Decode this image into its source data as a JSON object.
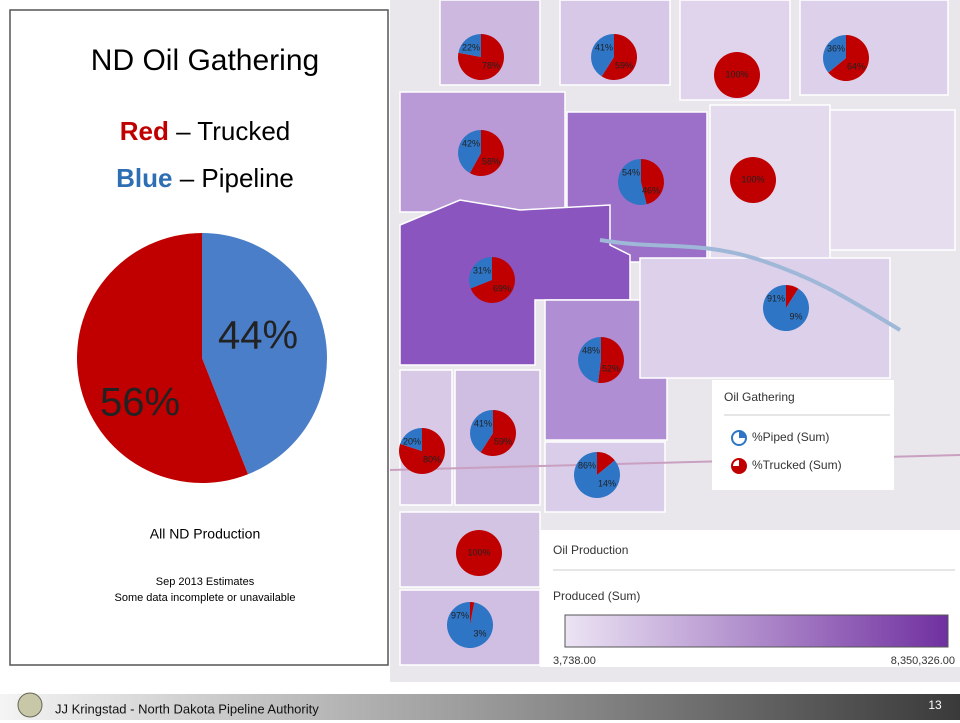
{
  "slide": {
    "title": "ND Oil Gathering",
    "key": [
      {
        "word": "Red",
        "label": "– Trucked",
        "color": "#c00000"
      },
      {
        "word": "Blue",
        "label": "– Pipeline",
        "color": "#2e6fb4"
      }
    ],
    "caption": "All ND Production",
    "notes": [
      "Sep 2013 Estimates",
      "Some data incomplete or unavailable"
    ],
    "footer": "JJ Kringstad - North Dakota Pipeline Authority",
    "page_number": "13"
  },
  "chart_data": {
    "type": "pie",
    "values": [
      44,
      56
    ],
    "value_labels": [
      "44%",
      "56%"
    ],
    "colors": [
      "#4a7ec8",
      "#c00000"
    ]
  },
  "map": {
    "colors": [
      "#2e75c6",
      "#c00000"
    ],
    "pies": [
      {
        "values": [
          22,
          78
        ],
        "value_labels": [
          "22%",
          "78%"
        ]
      },
      {
        "values": [
          41,
          59
        ],
        "value_labels": [
          "41%",
          "59%"
        ]
      },
      {
        "values": [
          0,
          100
        ],
        "value_labels": [
          null,
          "100%"
        ]
      },
      {
        "values": [
          36,
          64
        ],
        "value_labels": [
          "36%",
          "64%"
        ]
      },
      {
        "values": [
          42,
          58
        ],
        "value_labels": [
          "42%",
          "58%"
        ]
      },
      {
        "values": [
          54,
          46
        ],
        "value_labels": [
          "54%",
          "46%"
        ]
      },
      {
        "values": [
          0,
          100
        ],
        "value_labels": [
          null,
          "100%"
        ]
      },
      {
        "values": [
          31,
          69
        ],
        "value_labels": [
          "31%",
          "69%"
        ]
      },
      {
        "values": [
          91,
          9
        ],
        "value_labels": [
          "91%",
          "9%"
        ]
      },
      {
        "values": [
          48,
          52
        ],
        "value_labels": [
          "48%",
          "52%"
        ]
      },
      {
        "values": [
          41,
          59
        ],
        "value_labels": [
          "41%",
          "59%"
        ]
      },
      {
        "values": [
          20,
          80
        ],
        "value_labels": [
          "20%",
          "80%"
        ]
      },
      {
        "values": [
          86,
          14
        ],
        "value_labels": [
          "86%",
          "14%"
        ]
      },
      {
        "values": [
          0,
          100
        ],
        "value_labels": [
          null,
          "100%"
        ]
      },
      {
        "values": [
          97,
          3
        ],
        "value_labels": [
          "97%",
          "3%"
        ]
      }
    ],
    "gathering_legend": {
      "title": "Oil Gathering",
      "items": [
        "%Piped (Sum)",
        "%Trucked (Sum)"
      ]
    },
    "production_legend": {
      "title": "Oil Production",
      "subtitle": "Produced (Sum)",
      "range": [
        {
          "value": 3738,
          "label": "3,738.00"
        },
        {
          "value": 8350326,
          "label": "8,350,326.00"
        }
      ],
      "colors": [
        "#ece4f4",
        "#7030a0"
      ]
    }
  }
}
